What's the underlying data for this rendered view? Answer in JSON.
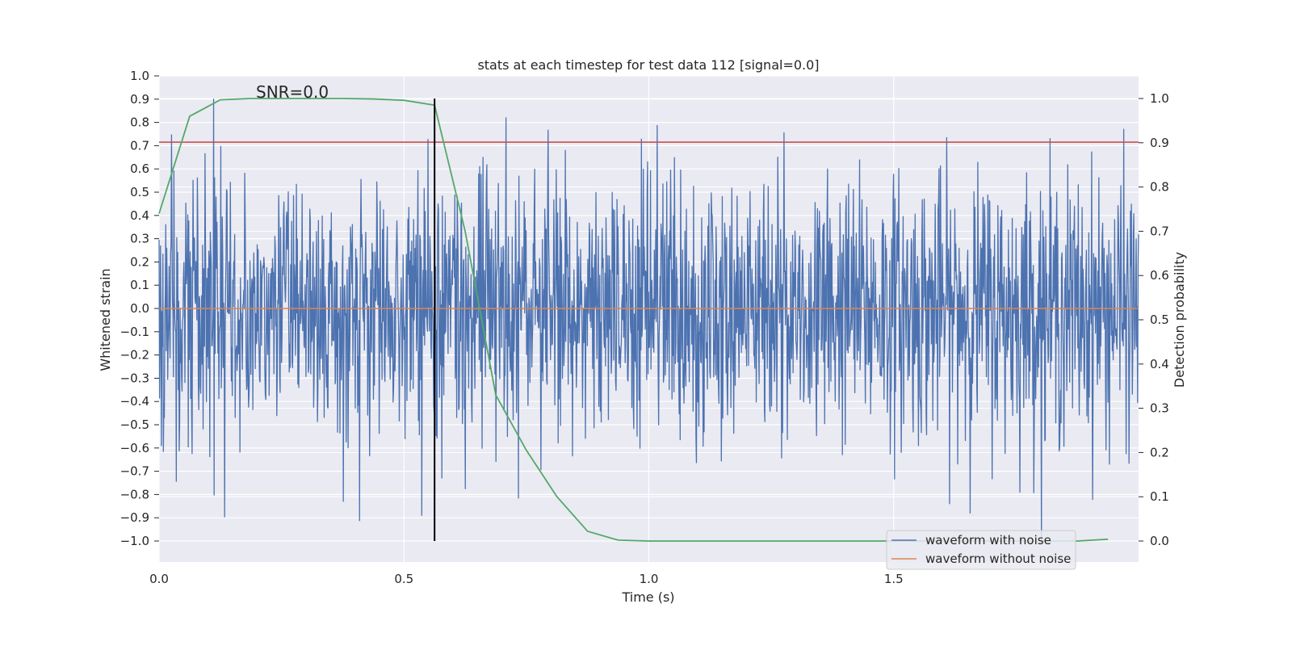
{
  "chart_data": {
    "type": "line",
    "title": "stats at each timestep for test data 112 [signal=0.0]",
    "xlabel": "Time (s)",
    "ylabel": "Whitened strain",
    "ylabel_right": "Detection probability",
    "xlim": [
      0.0,
      2.0
    ],
    "ylim": [
      -1.09,
      1.0
    ],
    "ylim_right": [
      -0.05,
      1.05
    ],
    "x_ticks": [
      0.0,
      0.5,
      1.0,
      1.5
    ],
    "x_tick_labels": [
      "0.0",
      "0.5",
      "1.0",
      "1.5"
    ],
    "y_ticks": [
      -1.0,
      -0.9,
      -0.8,
      -0.7,
      -0.6,
      -0.5,
      -0.4,
      -0.3,
      -0.2,
      -0.1,
      0.0,
      0.1,
      0.2,
      0.3,
      0.4,
      0.5,
      0.6,
      0.7,
      0.8,
      0.9,
      1.0
    ],
    "y_tick_labels": [
      "−1.0",
      "−0.9",
      "−0.8",
      "−0.7",
      "−0.6",
      "−0.5",
      "−0.4",
      "−0.3",
      "−0.2",
      "−0.1",
      "0.0",
      "0.1",
      "0.2",
      "0.3",
      "0.4",
      "0.5",
      "0.6",
      "0.7",
      "0.8",
      "0.9",
      "1.0"
    ],
    "y_right_ticks": [
      0.0,
      0.1,
      0.2,
      0.3,
      0.4,
      0.5,
      0.6,
      0.7,
      0.8,
      0.9,
      1.0
    ],
    "y_right_tick_labels": [
      "0.0",
      "0.1",
      "0.2",
      "0.3",
      "0.4",
      "0.5",
      "0.6",
      "0.7",
      "0.8",
      "0.9",
      "1.0"
    ],
    "annotation": "SNR=0.0",
    "annotation_x": 0.2,
    "annotation_y": 0.92,
    "threshold_strain": 0.715,
    "marker_time": 0.5625,
    "series": [
      {
        "name": "waveform with noise",
        "color": "#4c72b0",
        "kind": "noise",
        "amplitude": 0.28,
        "n_points": 2048,
        "x_range": [
          0.0,
          2.0
        ]
      },
      {
        "name": "waveform without noise",
        "color": "#dd8452",
        "kind": "constant",
        "value": 0.0
      },
      {
        "name": "detection probability",
        "color": "#55a868",
        "axis": "right",
        "x": [
          0.0,
          0.0625,
          0.125,
          0.1875,
          0.25,
          0.3125,
          0.375,
          0.4375,
          0.5,
          0.5625,
          0.625,
          0.6875,
          0.75,
          0.8125,
          0.875,
          0.9375,
          1.0,
          1.0625,
          1.125,
          1.1875,
          1.25,
          1.3125,
          1.375,
          1.4375,
          1.5,
          1.5625,
          1.625,
          1.6875,
          1.75,
          1.8125,
          1.875,
          1.9375
        ],
        "values": [
          0.74,
          0.96,
          0.997,
          1.0,
          1.0,
          1.0,
          1.0,
          0.999,
          0.996,
          0.985,
          0.7,
          0.33,
          0.205,
          0.1,
          0.022,
          0.002,
          0.0,
          0.0,
          0.0,
          0.0,
          0.0,
          0.0,
          0.0,
          0.0,
          0.0,
          0.0,
          0.0,
          0.0,
          0.0,
          0.0,
          0.0,
          0.004
        ]
      }
    ],
    "threshold_color": "#c44e52",
    "marker_color": "#000000",
    "legend": {
      "position": "lower-right",
      "entries": [
        {
          "label": "waveform with noise",
          "color": "#4c72b0"
        },
        {
          "label": "waveform without noise",
          "color": "#dd8452"
        }
      ]
    }
  }
}
